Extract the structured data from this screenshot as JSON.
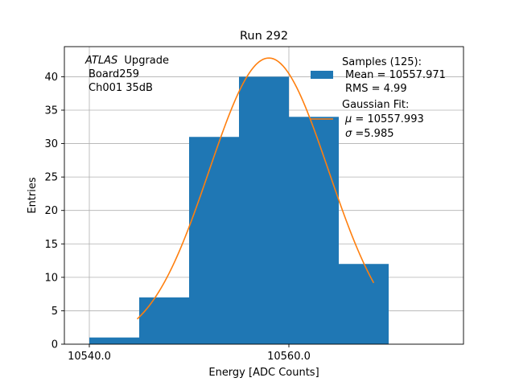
{
  "chart_data": {
    "type": "bar",
    "title": "Run 292",
    "xlabel": "Energy [ADC Counts]",
    "ylabel": "Entries",
    "xlim": [
      10537.5,
      10577.5
    ],
    "ylim": [
      0,
      44.5
    ],
    "xticks": [
      10540.0,
      10560.0
    ],
    "xtick_labels": [
      "10540.0",
      "10560.0"
    ],
    "yticks": [
      0,
      5,
      10,
      15,
      20,
      25,
      30,
      35,
      40
    ],
    "grid": true,
    "bins": [
      {
        "left": 10540,
        "right": 10545,
        "count": 1
      },
      {
        "left": 10545,
        "right": 10550,
        "count": 7
      },
      {
        "left": 10550,
        "right": 10555,
        "count": 31
      },
      {
        "left": 10555,
        "right": 10560,
        "count": 40
      },
      {
        "left": 10560,
        "right": 10565,
        "count": 34
      },
      {
        "left": 10565,
        "right": 10570,
        "count": 12
      }
    ],
    "fit": {
      "type": "gaussian",
      "mu": 10557.993,
      "sigma": 5.985,
      "amplitude": 42.8,
      "x_range": [
        10544.8,
        10568.5
      ]
    },
    "bar_color": "#1f77b4",
    "fit_color": "#ff7f0e",
    "annotation": {
      "experiment": "ATLAS",
      "label": "Upgrade",
      "board": "Board259",
      "channel": "Ch001 35dB"
    },
    "legend": {
      "placement": "top-right",
      "samples_title": "Samples (125):",
      "mean_text": "Mean = 10557.971",
      "rms_text": "RMS = 4.99",
      "fit_title": "Gaussian Fit:",
      "mu_symbol": "μ",
      "mu_text": " = 10557.993",
      "sigma_symbol": "σ",
      "sigma_text": "=5.985"
    }
  }
}
